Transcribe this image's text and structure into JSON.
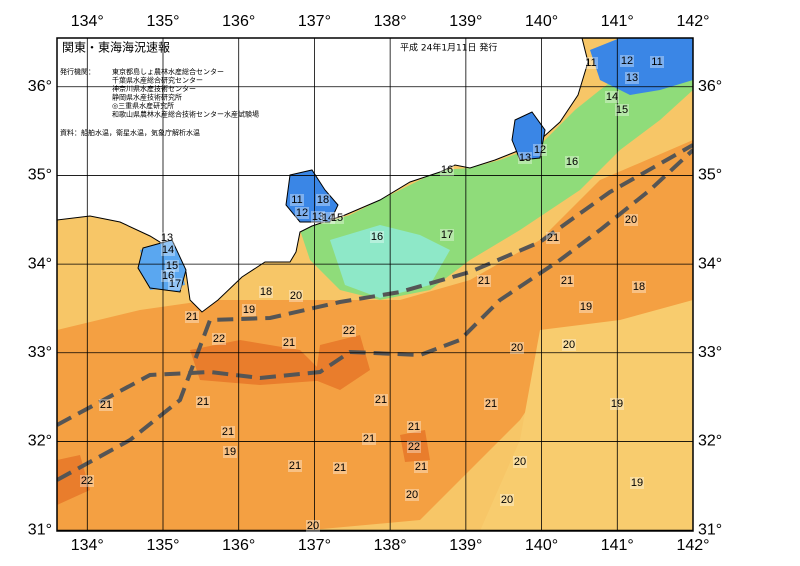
{
  "chart_data": {
    "type": "map",
    "title": "関東・東海海況速報",
    "date": "平成 24年1月11日 発行",
    "issuer_label": "発行機関：",
    "issuers": [
      "東京都島しょ農林水産総合センター",
      "千葉県水産総合研究センター",
      "神奈川県水産技術センター",
      "静岡県水産技術研究所",
      "◎三重県水産研究所",
      "和歌山県農林水産総合技術センター水産試験場"
    ],
    "source": "資料：船舶水温，衛星水温，気象庁解析水温",
    "xlim": [
      133.6,
      142
    ],
    "ylim": [
      30.99,
      36.55
    ],
    "xticks": [
      {
        "value": 134,
        "label": "134°"
      },
      {
        "value": 135,
        "label": "135°"
      },
      {
        "value": 136,
        "label": "136°"
      },
      {
        "value": 137,
        "label": "137°"
      },
      {
        "value": 138,
        "label": "138°"
      },
      {
        "value": 139,
        "label": "139°"
      },
      {
        "value": 140,
        "label": "140°"
      },
      {
        "value": 141,
        "label": "141°"
      },
      {
        "value": 142,
        "label": "142°"
      }
    ],
    "yticks": [
      {
        "value": 31,
        "label": "31°"
      },
      {
        "value": 32,
        "label": "32°"
      },
      {
        "value": 33,
        "label": "33°"
      },
      {
        "value": 34,
        "label": "34°"
      },
      {
        "value": 35,
        "label": "35°"
      },
      {
        "value": 36,
        "label": "36°"
      }
    ],
    "grid": true,
    "contour_labels": [
      11,
      12,
      11,
      13,
      14,
      15,
      12,
      13,
      16,
      16,
      11,
      18,
      12,
      13,
      14,
      15,
      16,
      17,
      21,
      20,
      13,
      14,
      15,
      16,
      17,
      21,
      21,
      18,
      18,
      20,
      19,
      19,
      21,
      22,
      21,
      22,
      20,
      20,
      21,
      21,
      21,
      21,
      19,
      21,
      21,
      21,
      22,
      19,
      21,
      21,
      21,
      20,
      19,
      22,
      20,
      20,
      20
    ]
  }
}
